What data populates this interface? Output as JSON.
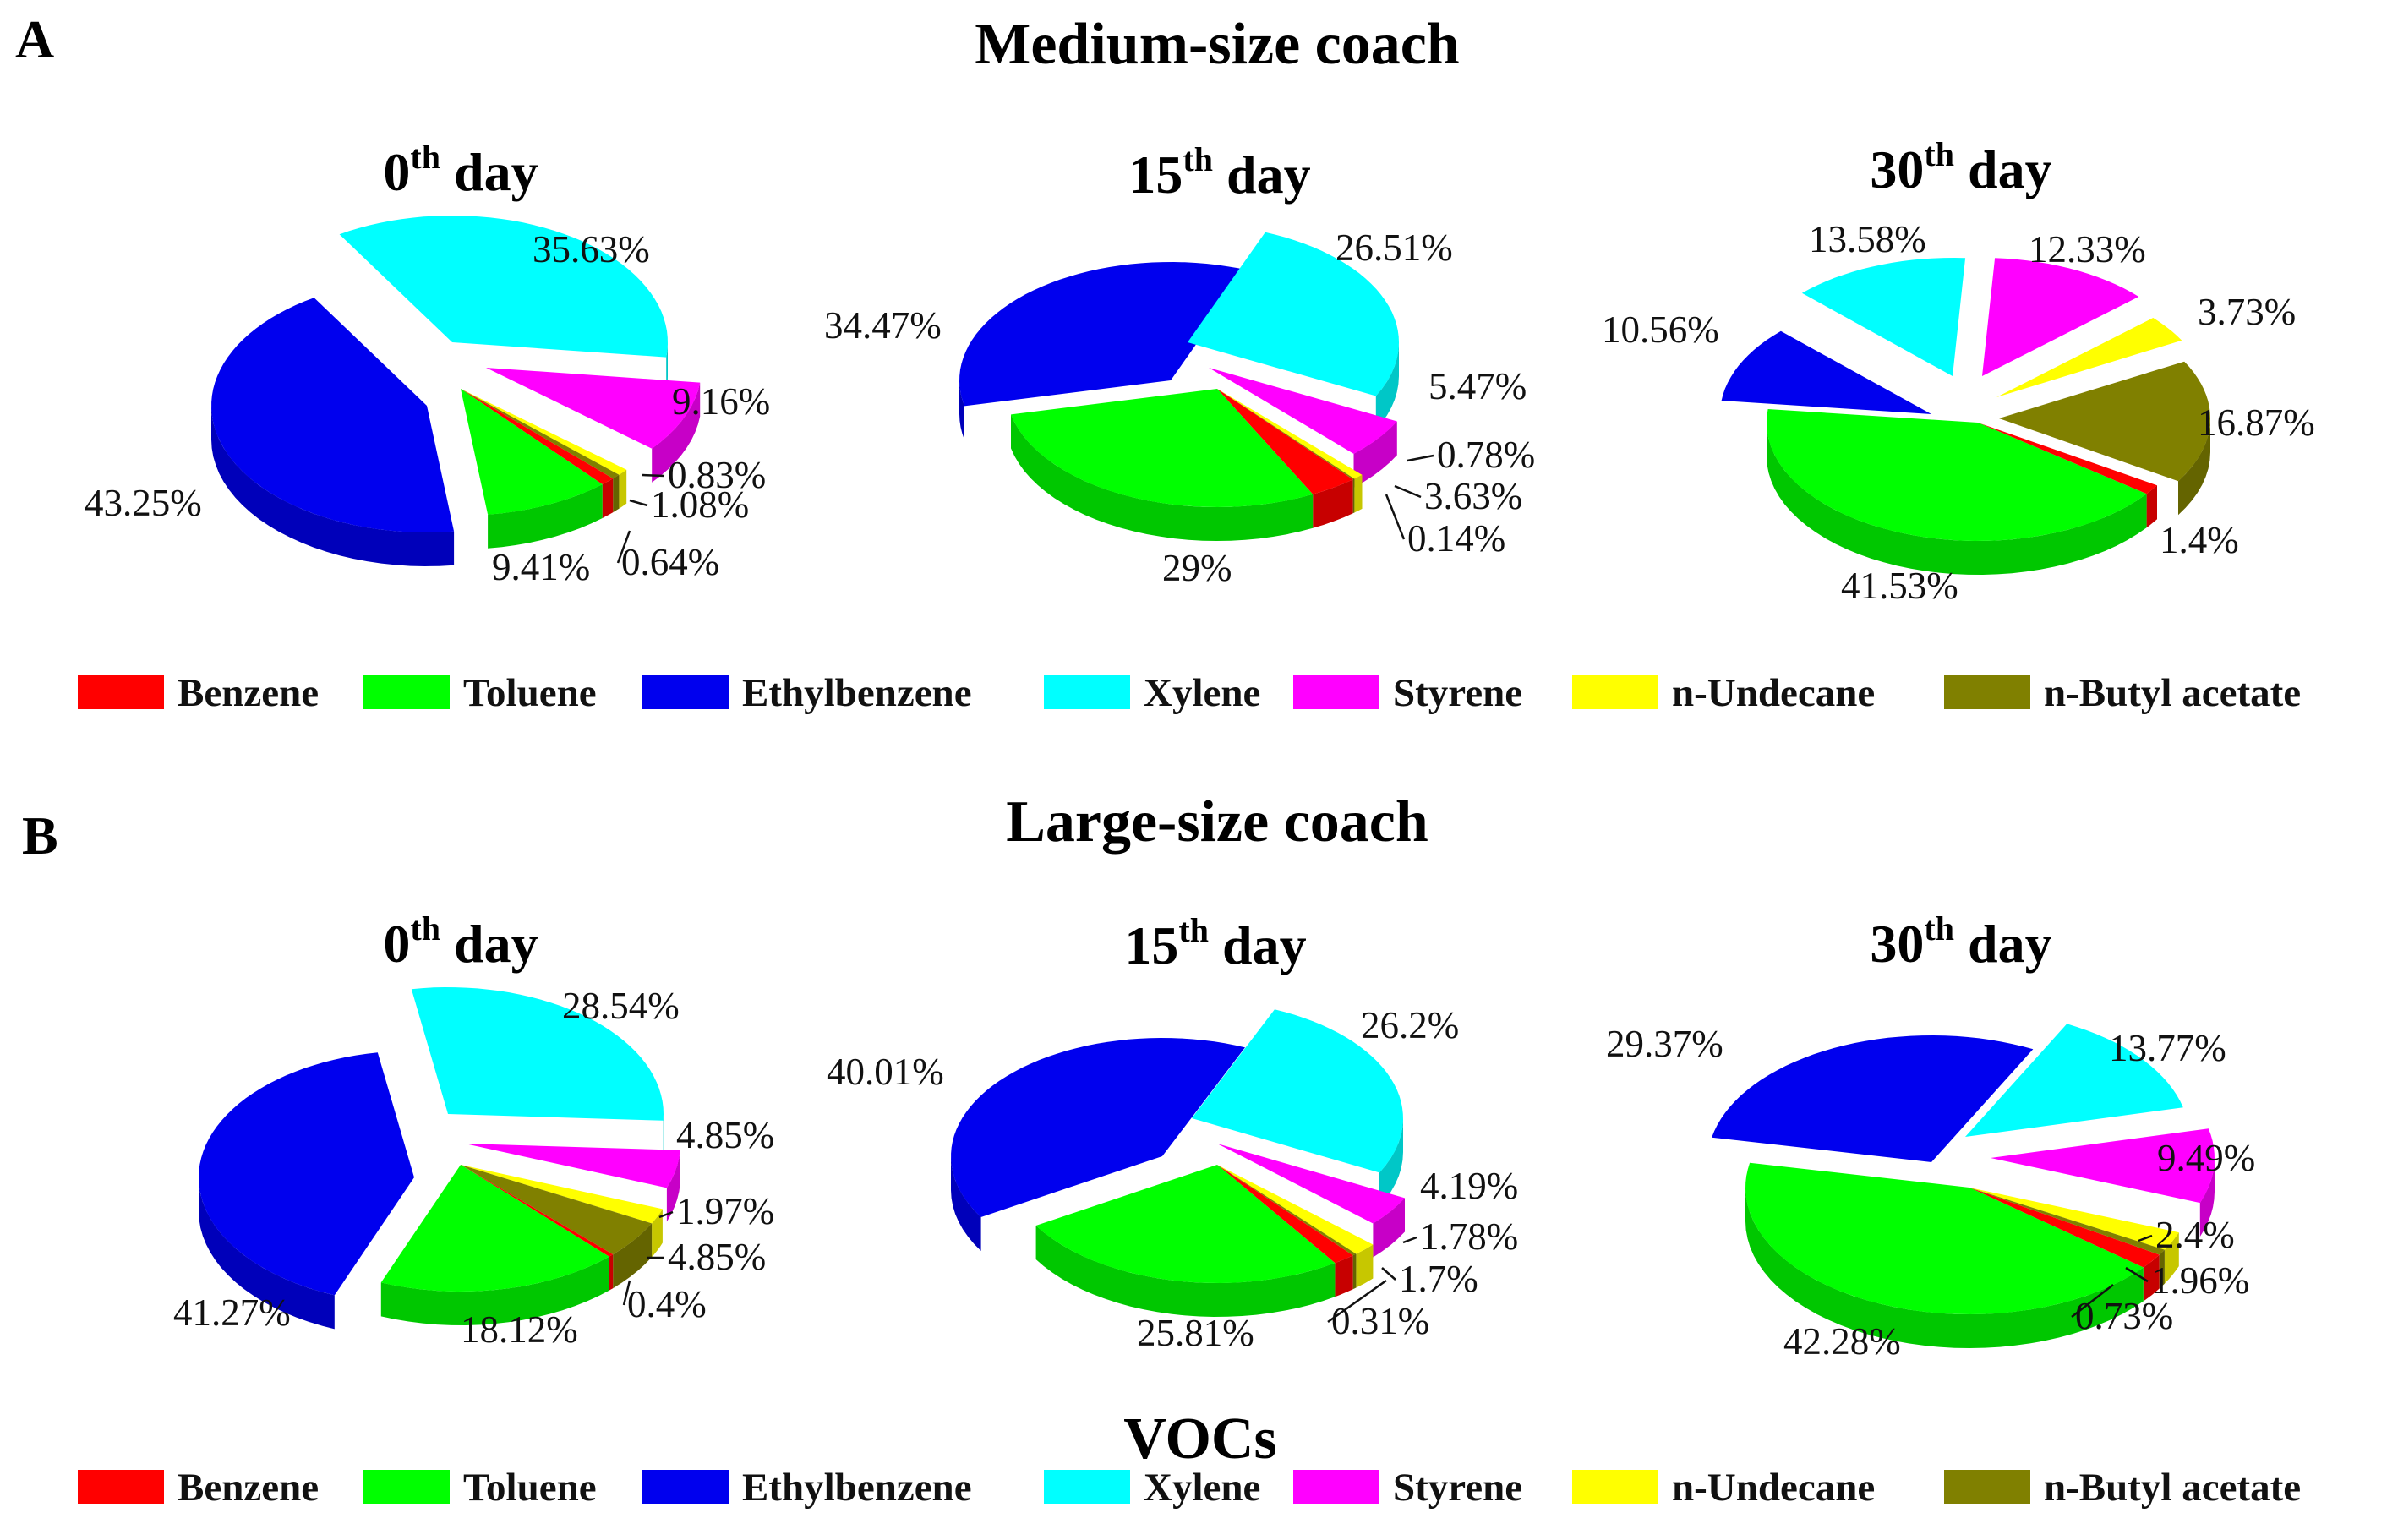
{
  "panels": [
    {
      "letter": "A",
      "title": "Medium-size coach"
    },
    {
      "letter": "B",
      "title": "Large-size coach"
    }
  ],
  "legend_title": "VOCs",
  "legend_items": [
    {
      "label": "Benzene",
      "color": "#ff0000"
    },
    {
      "label": "Toluene",
      "color": "#00ff00"
    },
    {
      "label": "Ethylbenzene",
      "color": "#0000ee"
    },
    {
      "label": "Xylene",
      "color": "#00ffff"
    },
    {
      "label": "Styrene",
      "color": "#ff00ff"
    },
    {
      "label": "n-Undecane",
      "color": "#ffff00"
    },
    {
      "label": "n-Butyl  acetate",
      "color": "#808000"
    }
  ],
  "chart_data": [
    {
      "type": "pie",
      "panel": "A",
      "title_number": "0",
      "title_sup": "th",
      "title_rest": " day",
      "series": [
        {
          "name": "Benzene",
          "value": 1.08,
          "label": "1.08%"
        },
        {
          "name": "Toluene",
          "value": 9.41,
          "label": "9.41%"
        },
        {
          "name": "Ethylbenzene",
          "value": 43.25,
          "label": "43.25%"
        },
        {
          "name": "Xylene",
          "value": 35.63,
          "label": "35.63%"
        },
        {
          "name": "Styrene",
          "value": 9.16,
          "label": "9.16%"
        },
        {
          "name": "n-Undecane",
          "value": 0.83,
          "label": "0.83%"
        },
        {
          "name": "n-Butyl  acetate",
          "value": 0.64,
          "label": "0.64%"
        }
      ]
    },
    {
      "type": "pie",
      "panel": "A",
      "title_number": "15",
      "title_sup": "th",
      "title_rest": " day",
      "series": [
        {
          "name": "Benzene",
          "value": 3.63,
          "label": "3.63%"
        },
        {
          "name": "Toluene",
          "value": 29,
          "label": "29%"
        },
        {
          "name": "Ethylbenzene",
          "value": 34.47,
          "label": "34.47%"
        },
        {
          "name": "Xylene",
          "value": 26.51,
          "label": "26.51%"
        },
        {
          "name": "Styrene",
          "value": 5.47,
          "label": "5.47%"
        },
        {
          "name": "n-Undecane",
          "value": 0.78,
          "label": "0.78%"
        },
        {
          "name": "n-Butyl  acetate",
          "value": 0.14,
          "label": "0.14%"
        }
      ]
    },
    {
      "type": "pie",
      "panel": "A",
      "title_number": "30",
      "title_sup": "th",
      "title_rest": " day",
      "series": [
        {
          "name": "Benzene",
          "value": 1.4,
          "label": "1.4%"
        },
        {
          "name": "Toluene",
          "value": 41.53,
          "label": "41.53%"
        },
        {
          "name": "Ethylbenzene",
          "value": 10.56,
          "label": "10.56%"
        },
        {
          "name": "Xylene",
          "value": 13.58,
          "label": "13.58%"
        },
        {
          "name": "Styrene",
          "value": 12.33,
          "label": "12.33%"
        },
        {
          "name": "n-Undecane",
          "value": 3.73,
          "label": "3.73%"
        },
        {
          "name": "n-Butyl  acetate",
          "value": 16.87,
          "label": "16.87%"
        }
      ]
    },
    {
      "type": "pie",
      "panel": "B",
      "title_number": "0",
      "title_sup": "th",
      "title_rest": " day",
      "series": [
        {
          "name": "Benzene",
          "value": 0.4,
          "label": "0.4%"
        },
        {
          "name": "Toluene",
          "value": 18.12,
          "label": "18.12%"
        },
        {
          "name": "Ethylbenzene",
          "value": 41.27,
          "label": "41.27%"
        },
        {
          "name": "Xylene",
          "value": 28.54,
          "label": "28.54%"
        },
        {
          "name": "Styrene",
          "value": 4.85,
          "label": "4.85%"
        },
        {
          "name": "n-Undecane",
          "value": 1.97,
          "label": "1.97%"
        },
        {
          "name": "n-Butyl  acetate",
          "value": 4.85,
          "label": "4.85%"
        }
      ]
    },
    {
      "type": "pie",
      "panel": "B",
      "title_number": "15",
      "title_sup": "th",
      "title_rest": " day",
      "series": [
        {
          "name": "Benzene",
          "value": 1.7,
          "label": "1.7%"
        },
        {
          "name": "Toluene",
          "value": 25.81,
          "label": "25.81%"
        },
        {
          "name": "Ethylbenzene",
          "value": 40.01,
          "label": "40.01%"
        },
        {
          "name": "Xylene",
          "value": 26.2,
          "label": "26.2%"
        },
        {
          "name": "Styrene",
          "value": 4.19,
          "label": "4.19%"
        },
        {
          "name": "n-Undecane",
          "value": 1.78,
          "label": "1.78%"
        },
        {
          "name": "n-Butyl  acetate",
          "value": 0.31,
          "label": "0.31%"
        }
      ]
    },
    {
      "type": "pie",
      "panel": "B",
      "title_number": "30",
      "title_sup": "th",
      "title_rest": " day",
      "series": [
        {
          "name": "Benzene",
          "value": 1.96,
          "label": "1.96%"
        },
        {
          "name": "Toluene",
          "value": 42.28,
          "label": "42.28%"
        },
        {
          "name": "Ethylbenzene",
          "value": 29.37,
          "label": "29.37%"
        },
        {
          "name": "Xylene",
          "value": 13.77,
          "label": "13.77%"
        },
        {
          "name": "Styrene",
          "value": 9.49,
          "label": "9.49%"
        },
        {
          "name": "n-Undecane",
          "value": 2.4,
          "label": "2.4%"
        },
        {
          "name": "n-Butyl  acetate",
          "value": 0.73,
          "label": "0.73%"
        }
      ]
    }
  ]
}
